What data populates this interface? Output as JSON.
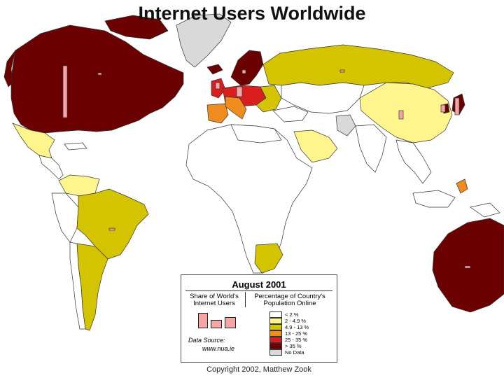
{
  "title": "Internet Users Worldwide",
  "legend": {
    "date": "August 2001",
    "share_header": "Share of World's Internet Users",
    "pct_header": "Percentage of Country's Population Online",
    "source_label": "Data Source:",
    "source_url": "www.nua.ie",
    "categories": [
      {
        "label": "< 2 %",
        "color": "#ffffff"
      },
      {
        "label": "2 - 4.9 %",
        "color": "#fff58c"
      },
      {
        "label": "4.9 - 13 %",
        "color": "#d4c400"
      },
      {
        "label": "13 - 25 %",
        "color": "#f08c1e"
      },
      {
        "label": "25 - 35 %",
        "color": "#d81e1e"
      },
      {
        "label": "> 35 %",
        "color": "#6b0000"
      },
      {
        "label": "No Data",
        "color": "#d9d9d9"
      }
    ]
  },
  "copyright": "Copyright 2002, Matthew Zook"
}
